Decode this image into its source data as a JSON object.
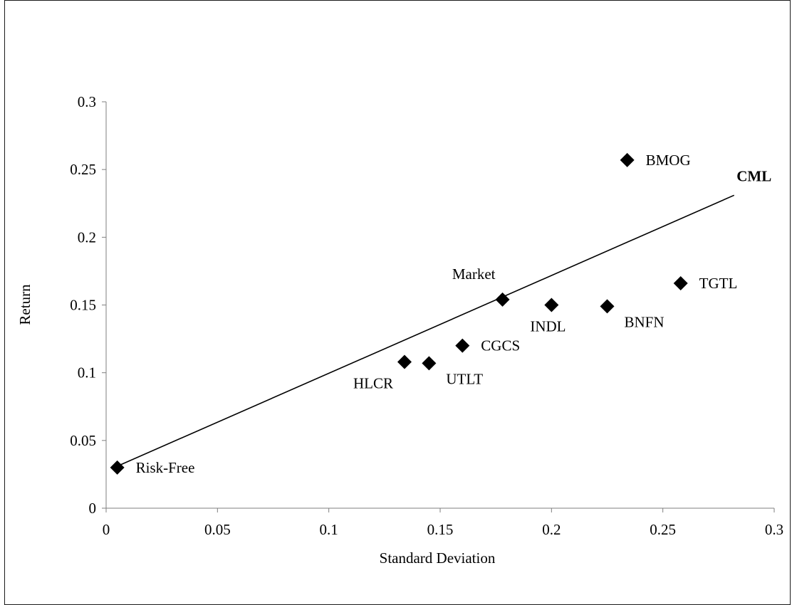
{
  "chart_data": {
    "type": "scatter",
    "title": "",
    "xlabel": "Standard Deviation",
    "ylabel": "Return",
    "xlim": [
      0,
      0.3
    ],
    "ylim": [
      0,
      0.3
    ],
    "x_ticks": [
      "0",
      "0.05",
      "0.1",
      "0.15",
      "0.2",
      "0.25",
      "0.3"
    ],
    "y_ticks": [
      "0",
      "0.05",
      "0.1",
      "0.15",
      "0.2",
      "0.25",
      "0.3"
    ],
    "grid": false,
    "points": [
      {
        "label": "Risk-Free",
        "x": 0.005,
        "y": 0.03,
        "label_pos": "right"
      },
      {
        "label": "HLCR",
        "x": 0.134,
        "y": 0.108,
        "label_pos": "below-left"
      },
      {
        "label": "UTLT",
        "x": 0.145,
        "y": 0.107,
        "label_pos": "below-right"
      },
      {
        "label": "CGCS",
        "x": 0.16,
        "y": 0.12,
        "label_pos": "right"
      },
      {
        "label": "Market",
        "x": 0.178,
        "y": 0.154,
        "label_pos": "above-left"
      },
      {
        "label": "INDL",
        "x": 0.2,
        "y": 0.15,
        "label_pos": "below"
      },
      {
        "label": "BNFN",
        "x": 0.225,
        "y": 0.149,
        "label_pos": "below-right"
      },
      {
        "label": "TGTL",
        "x": 0.258,
        "y": 0.166,
        "label_pos": "right"
      },
      {
        "label": "BMOG",
        "x": 0.234,
        "y": 0.257,
        "label_pos": "right"
      }
    ],
    "lines": [
      {
        "name": "CML",
        "x": [
          0.005,
          0.282
        ],
        "y": [
          0.031,
          0.231
        ]
      }
    ],
    "marker": {
      "shape": "diamond",
      "color": "#000000"
    }
  }
}
